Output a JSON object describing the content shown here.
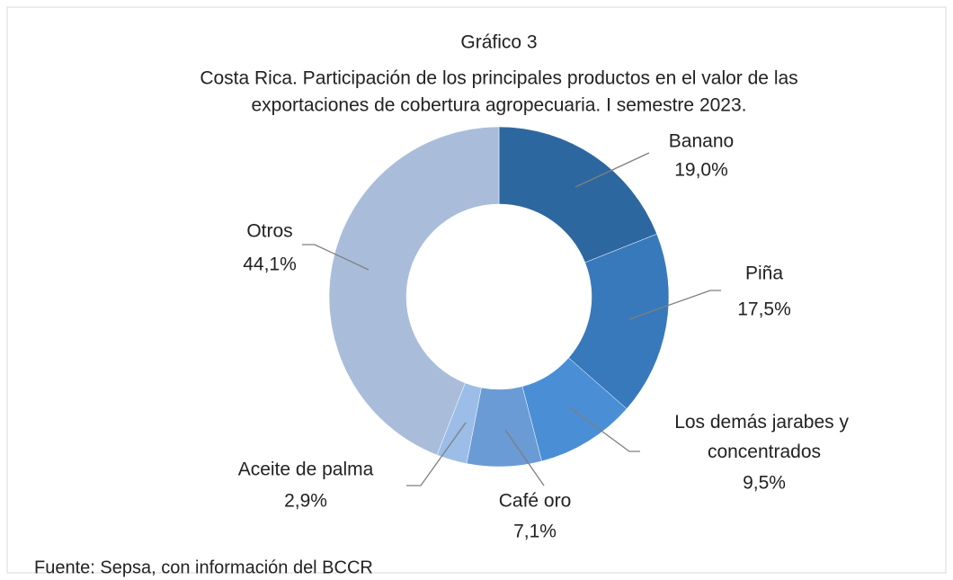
{
  "chart_data": {
    "type": "pie",
    "title": "Gráfico 3",
    "subtitle": [
      "Costa Rica.  Participación de los principales productos en el valor de las",
      "exportaciones de cobertura agropecuaria. I semestre 2023."
    ],
    "categories": [
      "Banano",
      "Piña",
      "Los demás jarabes y concentrados",
      "Café oro",
      "Aceite de palma",
      "Otros"
    ],
    "values": [
      19.0,
      17.5,
      9.5,
      7.1,
      2.9,
      44.1
    ],
    "value_labels": [
      "19,0%",
      "17,5%",
      "9,5%",
      "7,1%",
      "2,9%",
      "44,1%"
    ],
    "colors": [
      "#2d679f",
      "#3879bb",
      "#4a8fd6",
      "#6a9bd4",
      "#9bbde8",
      "#a9bddb"
    ],
    "donut": true,
    "source": "Fuente: Sepsa, con información del BCCR"
  }
}
